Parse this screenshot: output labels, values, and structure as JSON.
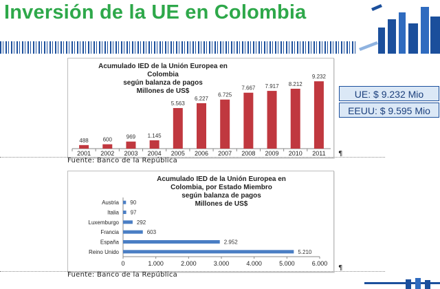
{
  "slide": {
    "title": "Inversión de la UE en Colombia",
    "source_label_1": "Fuente: Banco de la República",
    "source_label_2": "Fuente: Banco de la República",
    "pilcrow": "¶"
  },
  "summary": {
    "ue": "UE: $ 9.232 Mio",
    "eeuu": "EEUU: $ 9.595 Mio"
  },
  "colors": {
    "title_green": "#2ea84a",
    "bar_red": "#c0383f",
    "bar_blue": "#4a7ec4",
    "deco_blue": "#1b4f9c"
  },
  "chart_data": [
    {
      "type": "bar",
      "title": [
        "Acumulado IED de la Unión Europea en",
        "Colombia",
        "según balanza de pagos",
        "Millones de US$"
      ],
      "categories": [
        "2001",
        "2002",
        "2003",
        "2004",
        "2005",
        "2006",
        "2007",
        "2008",
        "2009",
        "2010",
        "2011"
      ],
      "values": [
        488,
        600,
        969,
        1145,
        5563,
        6227,
        6725,
        7667,
        7917,
        8212,
        9232
      ],
      "value_labels": [
        "488",
        "600",
        "969",
        "1.145",
        "5.563",
        "6.227",
        "6.725",
        "7.667",
        "7.917",
        "8.212",
        "9.232"
      ],
      "ylim": [
        0,
        10000
      ],
      "grid": false,
      "color": "#c0383f"
    },
    {
      "type": "bar",
      "orientation": "horizontal",
      "title": [
        "Acumulado IED de la Unión Europea en",
        "Colombia, por Estado Miembro",
        "según balanza de pagos",
        "Millones de US$"
      ],
      "categories": [
        "Austria",
        "Italia",
        "Luxemburgo",
        "Francia",
        "España",
        "Reino Unido"
      ],
      "values": [
        90,
        97,
        292,
        603,
        2952,
        5210
      ],
      "value_labels": [
        "90",
        "97",
        "292",
        "603",
        "2.952",
        "5.210"
      ],
      "xlim": [
        0,
        6000
      ],
      "xticks": [
        "0",
        "1.000",
        "2.000",
        "3.000",
        "4.000",
        "5.000",
        "6.000"
      ],
      "grid": false,
      "color": "#4a7ec4"
    }
  ]
}
